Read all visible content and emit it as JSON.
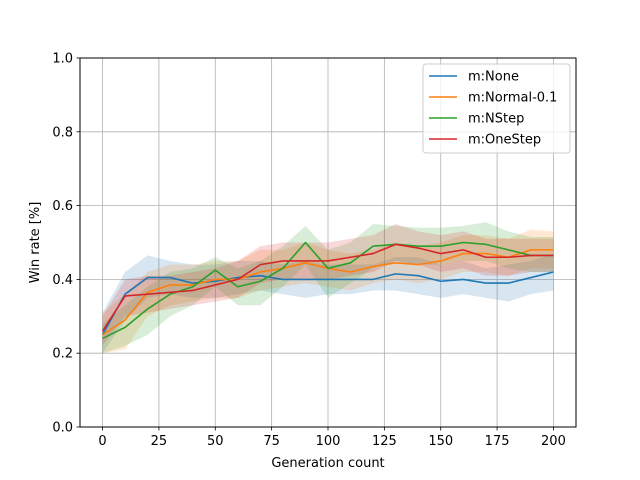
{
  "chart_data": {
    "type": "line",
    "title": "",
    "xlabel": "Generation count",
    "ylabel": "Win rate [%]",
    "xlim": [
      -10,
      210
    ],
    "ylim": [
      0.0,
      1.0
    ],
    "xticks": [
      "0",
      "25",
      "50",
      "75",
      "100",
      "125",
      "150",
      "175",
      "200"
    ],
    "yticks": [
      "0.0",
      "0.2",
      "0.4",
      "0.6",
      "0.8",
      "1.0"
    ],
    "grid": true,
    "legend_position": "top-right",
    "x": [
      0,
      10,
      20,
      30,
      40,
      50,
      60,
      70,
      80,
      90,
      100,
      110,
      120,
      130,
      140,
      150,
      160,
      170,
      180,
      190,
      200
    ],
    "series": [
      {
        "name": "m:None",
        "color": "#1f77b4",
        "values": [
          0.25,
          0.36,
          0.405,
          0.405,
          0.39,
          0.395,
          0.405,
          0.41,
          0.4,
          0.4,
          0.4,
          0.4,
          0.4,
          0.415,
          0.41,
          0.395,
          0.4,
          0.39,
          0.39,
          0.405,
          0.42
        ],
        "lower": [
          0.2,
          0.29,
          0.35,
          0.36,
          0.35,
          0.35,
          0.36,
          0.37,
          0.36,
          0.35,
          0.36,
          0.36,
          0.37,
          0.37,
          0.36,
          0.35,
          0.36,
          0.35,
          0.34,
          0.36,
          0.37
        ],
        "upper": [
          0.31,
          0.42,
          0.465,
          0.45,
          0.44,
          0.44,
          0.45,
          0.45,
          0.44,
          0.45,
          0.44,
          0.44,
          0.44,
          0.46,
          0.46,
          0.44,
          0.45,
          0.43,
          0.44,
          0.45,
          0.47
        ]
      },
      {
        "name": "m:Normal-0.1",
        "color": "#ff7f0e",
        "values": [
          0.25,
          0.29,
          0.365,
          0.385,
          0.385,
          0.4,
          0.4,
          0.42,
          0.43,
          0.445,
          0.43,
          0.42,
          0.435,
          0.445,
          0.44,
          0.45,
          0.47,
          0.47,
          0.46,
          0.48,
          0.48
        ],
        "lower": [
          0.2,
          0.21,
          0.3,
          0.33,
          0.34,
          0.35,
          0.35,
          0.37,
          0.38,
          0.39,
          0.38,
          0.37,
          0.39,
          0.4,
          0.39,
          0.4,
          0.42,
          0.42,
          0.41,
          0.43,
          0.43
        ],
        "upper": [
          0.31,
          0.36,
          0.42,
          0.44,
          0.44,
          0.45,
          0.45,
          0.48,
          0.48,
          0.5,
          0.48,
          0.47,
          0.48,
          0.5,
          0.49,
          0.5,
          0.52,
          0.52,
          0.51,
          0.535,
          0.53
        ]
      },
      {
        "name": "m:NStep",
        "color": "#2ca02c",
        "values": [
          0.24,
          0.27,
          0.32,
          0.36,
          0.38,
          0.425,
          0.38,
          0.395,
          0.43,
          0.5,
          0.43,
          0.445,
          0.49,
          0.495,
          0.49,
          0.49,
          0.5,
          0.495,
          0.48,
          0.465,
          0.465
        ],
        "lower": [
          0.2,
          0.22,
          0.25,
          0.3,
          0.33,
          0.38,
          0.33,
          0.33,
          0.38,
          0.44,
          0.35,
          0.39,
          0.43,
          0.45,
          0.44,
          0.44,
          0.45,
          0.45,
          0.43,
          0.42,
          0.42
        ],
        "upper": [
          0.28,
          0.33,
          0.38,
          0.42,
          0.43,
          0.46,
          0.43,
          0.45,
          0.49,
          0.545,
          0.48,
          0.5,
          0.55,
          0.545,
          0.54,
          0.54,
          0.545,
          0.555,
          0.53,
          0.515,
          0.515
        ]
      },
      {
        "name": "m:OneStep",
        "color": "#d62728",
        "values": [
          0.26,
          0.355,
          0.36,
          0.365,
          0.37,
          0.385,
          0.4,
          0.44,
          0.45,
          0.45,
          0.45,
          0.46,
          0.47,
          0.495,
          0.485,
          0.47,
          0.48,
          0.46,
          0.46,
          0.465,
          0.465
        ],
        "lower": [
          0.22,
          0.3,
          0.31,
          0.32,
          0.33,
          0.34,
          0.35,
          0.39,
          0.4,
          0.4,
          0.4,
          0.41,
          0.42,
          0.45,
          0.44,
          0.42,
          0.43,
          0.41,
          0.41,
          0.42,
          0.42
        ],
        "upper": [
          0.3,
          0.4,
          0.41,
          0.41,
          0.42,
          0.43,
          0.45,
          0.49,
          0.5,
          0.5,
          0.5,
          0.51,
          0.52,
          0.55,
          0.53,
          0.52,
          0.53,
          0.51,
          0.51,
          0.51,
          0.51
        ]
      }
    ]
  }
}
